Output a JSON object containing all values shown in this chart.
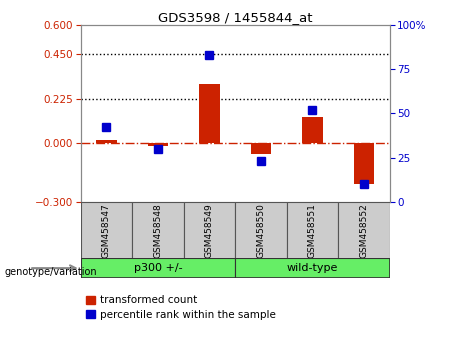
{
  "title": "GDS3598 / 1455844_at",
  "samples": [
    "GSM458547",
    "GSM458548",
    "GSM458549",
    "GSM458550",
    "GSM458551",
    "GSM458552"
  ],
  "transformed_count": [
    0.012,
    -0.015,
    0.3,
    -0.055,
    0.13,
    -0.21
  ],
  "percentile_rank": [
    42,
    30,
    83,
    23,
    52,
    10
  ],
  "ylim_left": [
    -0.3,
    0.6
  ],
  "ylim_right": [
    0,
    100
  ],
  "yticks_left": [
    -0.3,
    0,
    0.225,
    0.45,
    0.6
  ],
  "yticks_right": [
    0,
    25,
    50,
    75,
    100
  ],
  "hlines": [
    0.225,
    0.45
  ],
  "red_color": "#cc2200",
  "blue_color": "#0000cc",
  "bar_width": 0.4,
  "marker_size": 6,
  "left_axis_color": "#cc2200",
  "right_axis_color": "#0000cc",
  "legend_items": [
    "transformed count",
    "percentile rank within the sample"
  ],
  "genotype_label": "genotype/variation",
  "group1_label": "p300 +/-",
  "group2_label": "wild-type",
  "green_color": "#66ee66",
  "gray_color": "#cccccc"
}
